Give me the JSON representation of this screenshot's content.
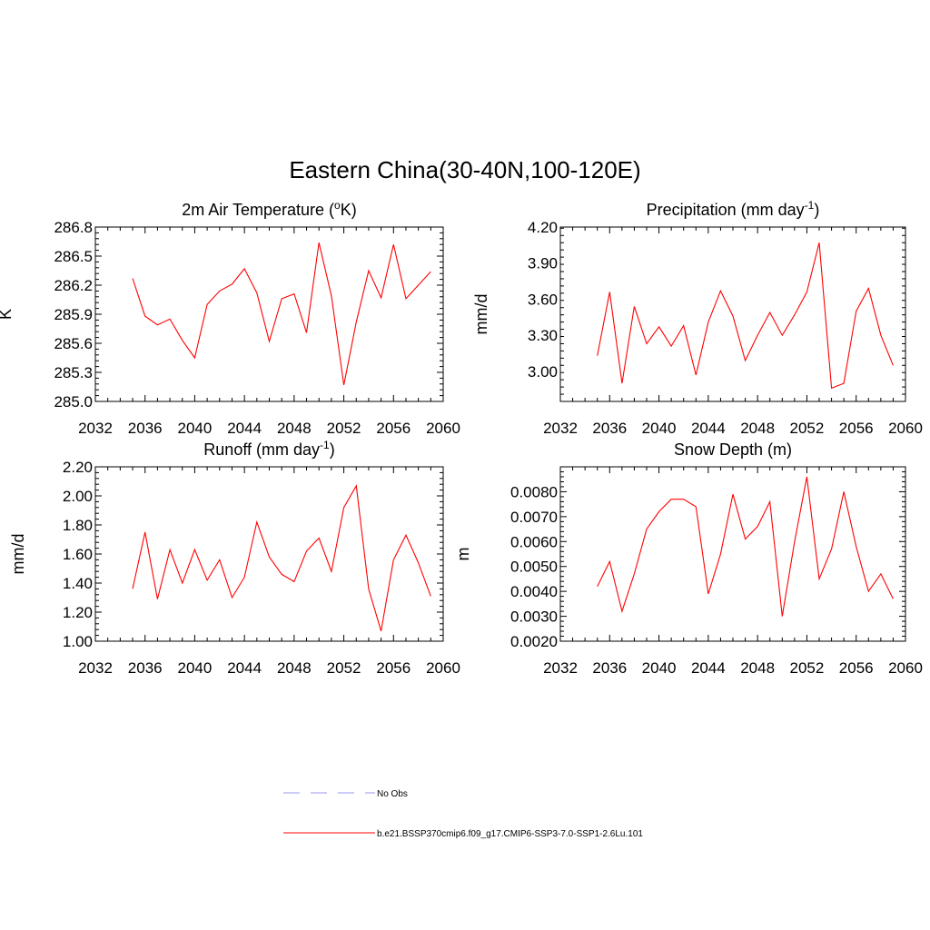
{
  "title": "Eastern China(30-40N,100-120E)",
  "legend": [
    {
      "label": "No Obs",
      "color": "#9999ee",
      "dashed": true
    },
    {
      "label": "b.e21.BSSP370cmip6.f09_g17.CMIP6-SSP3-7.0-SSP1-2.6Lu.101",
      "color": "#ff0000",
      "dashed": false
    }
  ],
  "chart_data": [
    {
      "type": "line",
      "title": "2m Air Temperature (",
      "title_sup": "o",
      "title_after": "K)",
      "ylabel": "K",
      "xlim": [
        2032,
        2060
      ],
      "ylim": [
        285.0,
        286.8
      ],
      "xticks": [
        2032,
        2036,
        2040,
        2044,
        2048,
        2052,
        2056,
        2060
      ],
      "yticks": [
        "285.0",
        "285.3",
        "285.6",
        "285.9",
        "286.2",
        "286.5",
        "286.8"
      ],
      "x": [
        2035,
        2036,
        2037,
        2038,
        2039,
        2040,
        2041,
        2042,
        2043,
        2044,
        2045,
        2046,
        2047,
        2048,
        2049,
        2050,
        2051,
        2052,
        2053,
        2054,
        2055,
        2056,
        2057,
        2058,
        2059
      ],
      "series": [
        {
          "color": "#ff0000",
          "values": [
            286.27,
            285.88,
            285.79,
            285.85,
            285.63,
            285.45,
            286.0,
            286.14,
            286.21,
            286.37,
            286.12,
            285.62,
            286.06,
            286.11,
            285.71,
            286.64,
            286.09,
            285.17,
            285.82,
            286.35,
            286.07,
            286.62,
            286.06,
            286.2,
            286.34
          ]
        }
      ]
    },
    {
      "type": "line",
      "title": "Precipitation (mm day",
      "title_sup": "-1",
      "title_after": ")",
      "ylabel": "mm/d",
      "xlim": [
        2032,
        2060
      ],
      "ylim": [
        2.75,
        4.2
      ],
      "xticks": [
        2032,
        2036,
        2040,
        2044,
        2048,
        2052,
        2056,
        2060
      ],
      "yticks": [
        "3.00",
        "3.30",
        "3.60",
        "3.90",
        "4.20"
      ],
      "x": [
        2035,
        2036,
        2037,
        2038,
        2039,
        2040,
        2041,
        2042,
        2043,
        2044,
        2045,
        2046,
        2047,
        2048,
        2049,
        2050,
        2051,
        2052,
        2053,
        2054,
        2055,
        2056,
        2057,
        2058,
        2059
      ],
      "series": [
        {
          "color": "#ff0000",
          "values": [
            3.13,
            3.66,
            2.9,
            3.54,
            3.23,
            3.37,
            3.21,
            3.38,
            2.97,
            3.41,
            3.67,
            3.46,
            3.09,
            3.3,
            3.49,
            3.3,
            3.47,
            3.66,
            4.07,
            2.86,
            2.9,
            3.5,
            3.69,
            3.3,
            3.05
          ]
        }
      ]
    },
    {
      "type": "line",
      "title": "Runoff (mm day",
      "title_sup": "-1",
      "title_after": ")",
      "ylabel": "mm/d",
      "xlim": [
        2032,
        2060
      ],
      "ylim": [
        1.0,
        2.2
      ],
      "xticks": [
        2032,
        2036,
        2040,
        2044,
        2048,
        2052,
        2056,
        2060
      ],
      "yticks": [
        "1.00",
        "1.20",
        "1.40",
        "1.60",
        "1.80",
        "2.00",
        "2.20"
      ],
      "x": [
        2035,
        2036,
        2037,
        2038,
        2039,
        2040,
        2041,
        2042,
        2043,
        2044,
        2045,
        2046,
        2047,
        2048,
        2049,
        2050,
        2051,
        2052,
        2053,
        2054,
        2055,
        2056,
        2057,
        2058,
        2059
      ],
      "series": [
        {
          "color": "#ff0000",
          "values": [
            1.36,
            1.75,
            1.29,
            1.63,
            1.4,
            1.63,
            1.42,
            1.56,
            1.3,
            1.44,
            1.82,
            1.58,
            1.46,
            1.41,
            1.62,
            1.71,
            1.48,
            1.92,
            2.07,
            1.36,
            1.07,
            1.56,
            1.73,
            1.54,
            1.31
          ]
        }
      ]
    },
    {
      "type": "line",
      "title": "Snow Depth (m)",
      "title_sup": "",
      "title_after": "",
      "ylabel": "m",
      "xlim": [
        2032,
        2060
      ],
      "ylim": [
        0.002,
        0.009
      ],
      "xticks": [
        2032,
        2036,
        2040,
        2044,
        2048,
        2052,
        2056,
        2060
      ],
      "yticks": [
        "0.0020",
        "0.0030",
        "0.0040",
        "0.0050",
        "0.0060",
        "0.0070",
        "0.0080"
      ],
      "x": [
        2035,
        2036,
        2037,
        2038,
        2039,
        2040,
        2041,
        2042,
        2043,
        2044,
        2045,
        2046,
        2047,
        2048,
        2049,
        2050,
        2051,
        2052,
        2053,
        2054,
        2055,
        2056,
        2057,
        2058,
        2059
      ],
      "series": [
        {
          "color": "#ff0000",
          "values": [
            0.0042,
            0.0052,
            0.0032,
            0.0047,
            0.0065,
            0.0072,
            0.0077,
            0.0077,
            0.0074,
            0.0039,
            0.0055,
            0.0079,
            0.0061,
            0.0066,
            0.0076,
            0.003,
            0.006,
            0.0086,
            0.0045,
            0.0057,
            0.008,
            0.0058,
            0.004,
            0.0047,
            0.0037
          ]
        }
      ]
    }
  ]
}
